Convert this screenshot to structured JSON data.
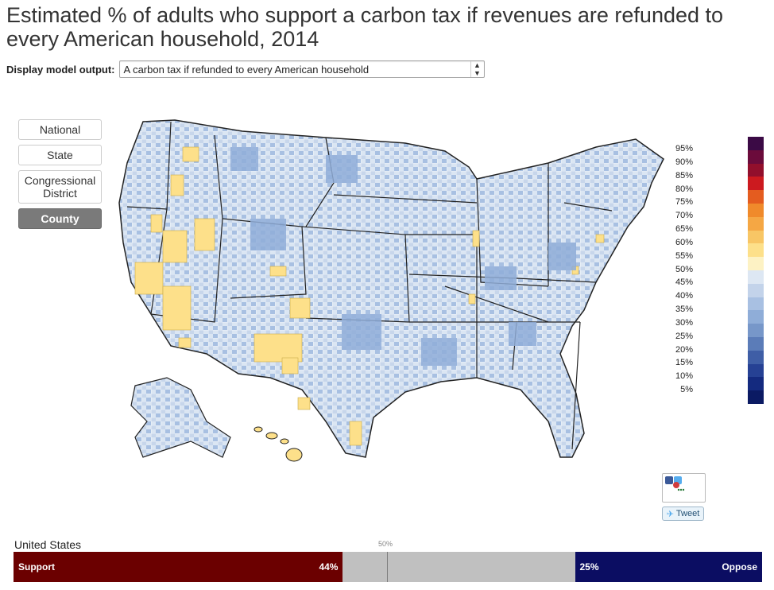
{
  "title": "Estimated % of adults who support a carbon tax if revenues are refunded to every American household, 2014",
  "controls": {
    "label": "Display model output:",
    "selected": "A carbon tax if refunded to every American household"
  },
  "levels": [
    {
      "label": "National",
      "active": false
    },
    {
      "label": "State",
      "active": false
    },
    {
      "label": "Congressional District",
      "active": false
    },
    {
      "label": "County",
      "active": true
    }
  ],
  "map": {
    "region": "United States (contiguous, Alaska, Hawaii)",
    "colors": {
      "light_blue": "#dbe6f3",
      "mid_blue": "#a8c0e2",
      "dark_blue": "#7797c9",
      "yellow": "#fde08a",
      "border": "#222222"
    }
  },
  "legend": {
    "labels": [
      "95%",
      "90%",
      "85%",
      "80%",
      "75%",
      "70%",
      "65%",
      "60%",
      "55%",
      "50%",
      "45%",
      "40%",
      "35%",
      "30%",
      "25%",
      "20%",
      "15%",
      "10%",
      "5%"
    ],
    "colors": [
      "#3b0a45",
      "#6b0b3b",
      "#920f2c",
      "#cc1a1f",
      "#e45c1f",
      "#f08a2b",
      "#f5a744",
      "#f8c665",
      "#fde08a",
      "#fdf2c4",
      "#dde7f3",
      "#c3d3ea",
      "#a8c0e2",
      "#8fadd8",
      "#7797c9",
      "#5b7cb8",
      "#3f5ea6",
      "#264194",
      "#142a7f",
      "#0b1a63"
    ]
  },
  "share": {
    "tweet_label": "Tweet"
  },
  "summary": {
    "region": "United States",
    "support_label": "Support",
    "support_value": "44%",
    "support_fraction": 0.44,
    "oppose_label": "Oppose",
    "oppose_value": "25%",
    "oppose_fraction": 0.25,
    "midpoint_label": "50%"
  }
}
